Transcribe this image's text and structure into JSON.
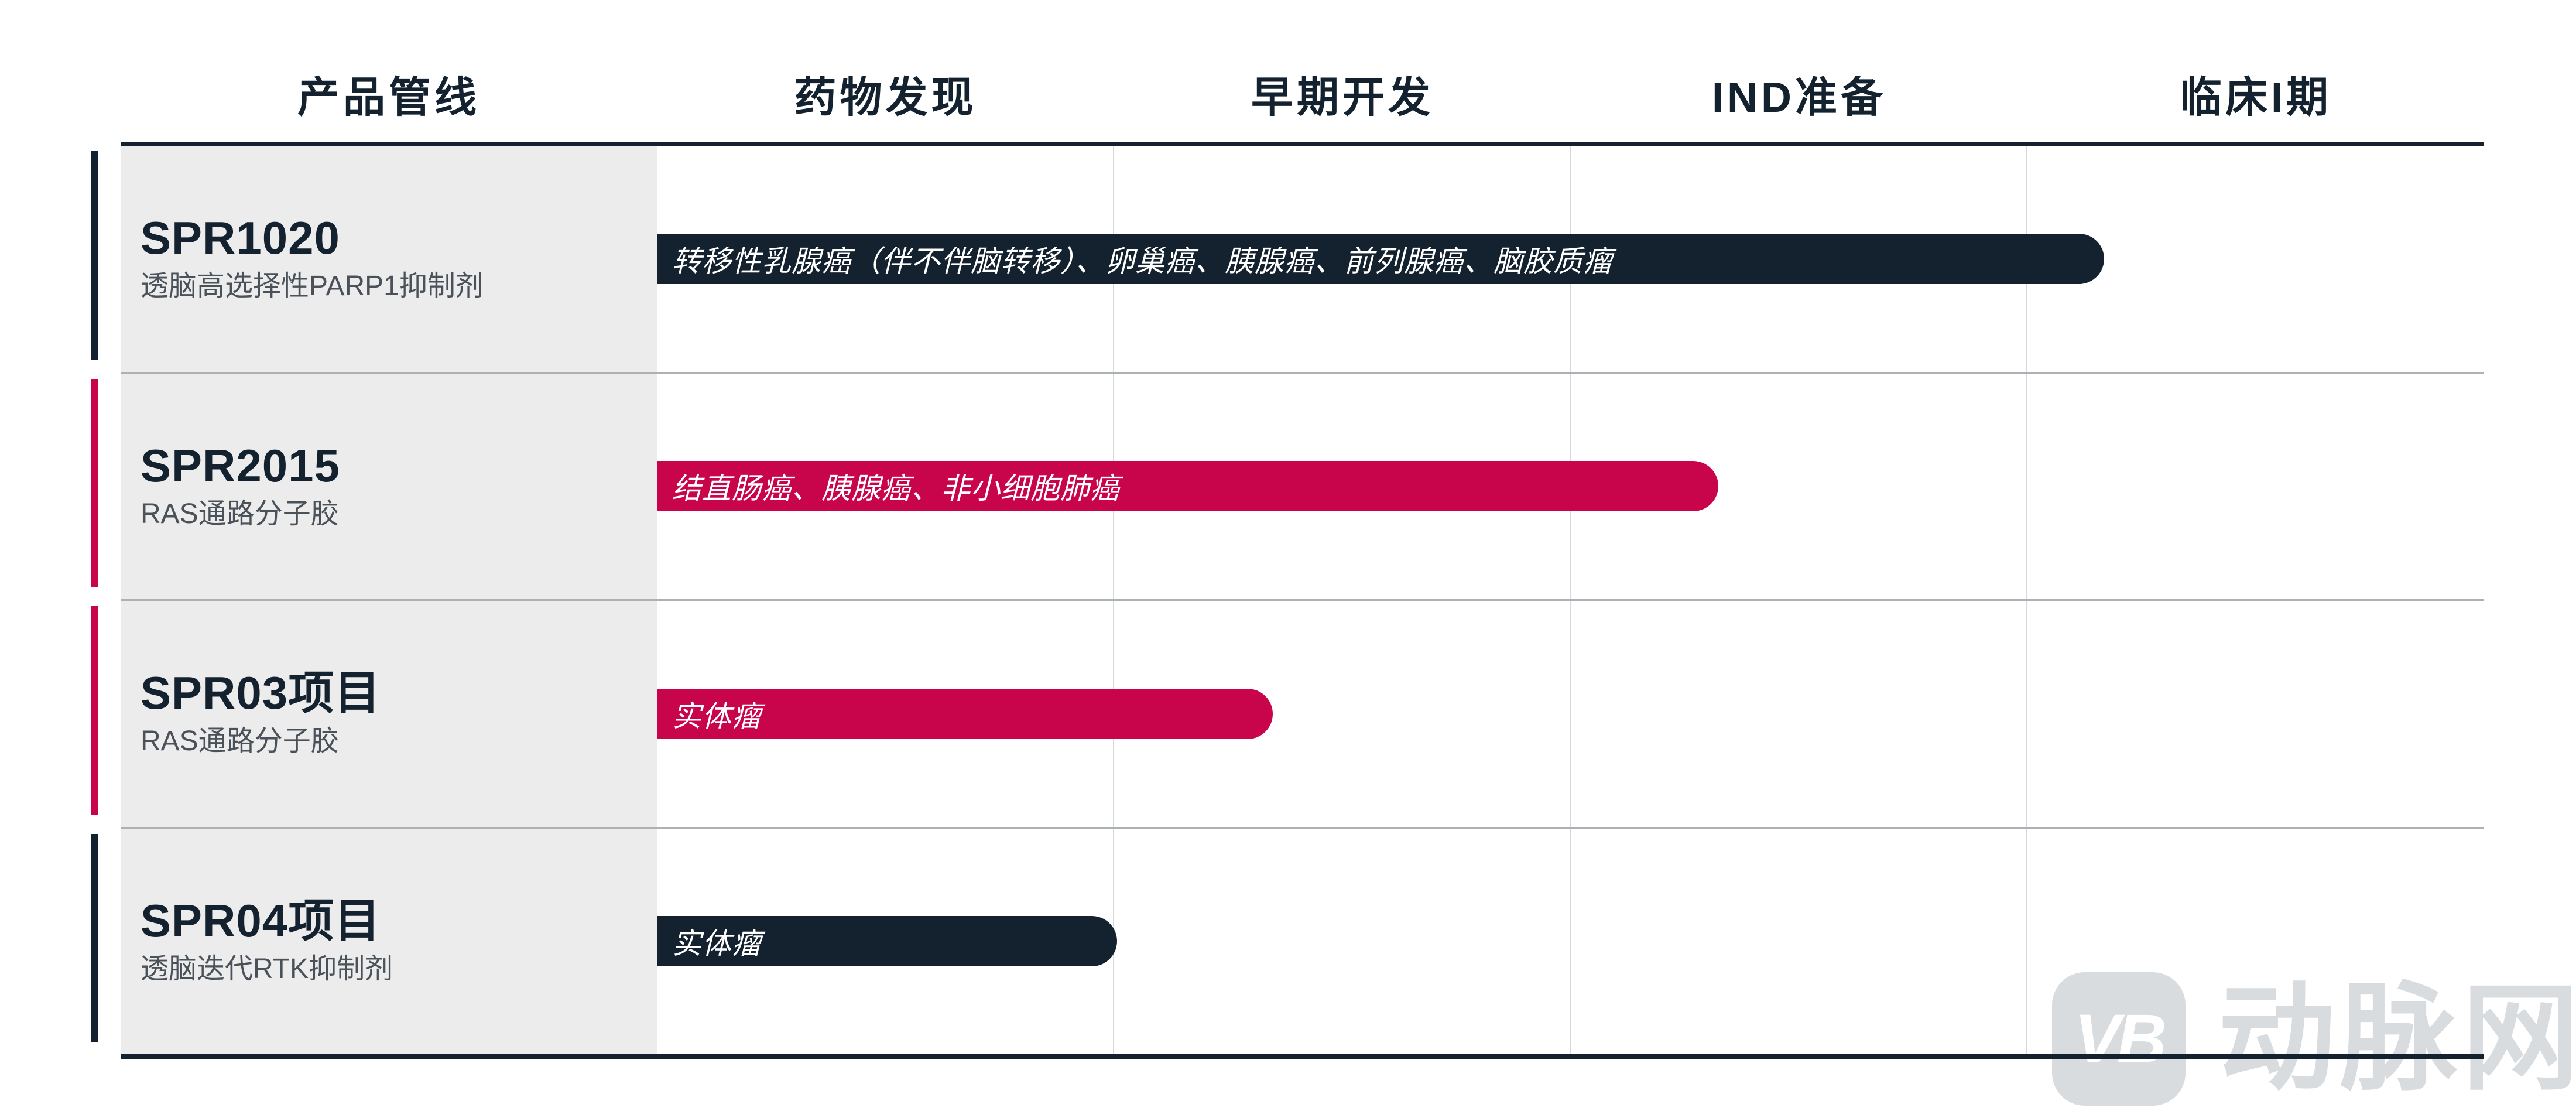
{
  "colors": {
    "navy": "#14222F",
    "crimson": "#C8054A",
    "label_background": "#ECECED",
    "grid_line": "#D6D8DA",
    "row_separator": "#ACB1B5",
    "subtitle_text": "#4A5158",
    "watermark_gray": "#D9DCDE"
  },
  "header": {
    "columns": [
      "产品管线",
      "药物发现",
      "早期开发",
      "IND准备",
      "临床I期"
    ]
  },
  "chart_data": {
    "type": "bar",
    "orientation": "horizontal",
    "title": "",
    "stage_columns": [
      "药物发现",
      "早期开发",
      "IND准备",
      "临床I期"
    ],
    "rows": [
      {
        "pipeline": "SPR1020",
        "modality": "透脑高选择性PARP1抑制剂",
        "indications": "转移性乳腺癌（伴不伴脑转移）、卵巢癌、胰腺癌、前列腺癌、脑胶质瘤",
        "color": "#14222F",
        "progress_stage_units": 3.17,
        "width_pct": 79.2
      },
      {
        "pipeline": "SPR2015",
        "modality": "RAS通路分子胶",
        "indications": "结直肠癌、胰腺癌、非小细胞肺癌",
        "color": "#C8054A",
        "progress_stage_units": 2.33,
        "width_pct": 58.1
      },
      {
        "pipeline": "SPR03项目",
        "modality": "RAS通路分子胶",
        "indications": "实体瘤",
        "color": "#C8054A",
        "progress_stage_units": 1.35,
        "width_pct": 33.7
      },
      {
        "pipeline": "SPR04项目",
        "modality": "透脑迭代RTK抑制剂",
        "indications": "实体瘤",
        "color": "#14222F",
        "progress_stage_units": 1.01,
        "width_pct": 25.2
      }
    ]
  },
  "watermark": {
    "logo_text": "VB",
    "brand_text": "动脉网"
  }
}
